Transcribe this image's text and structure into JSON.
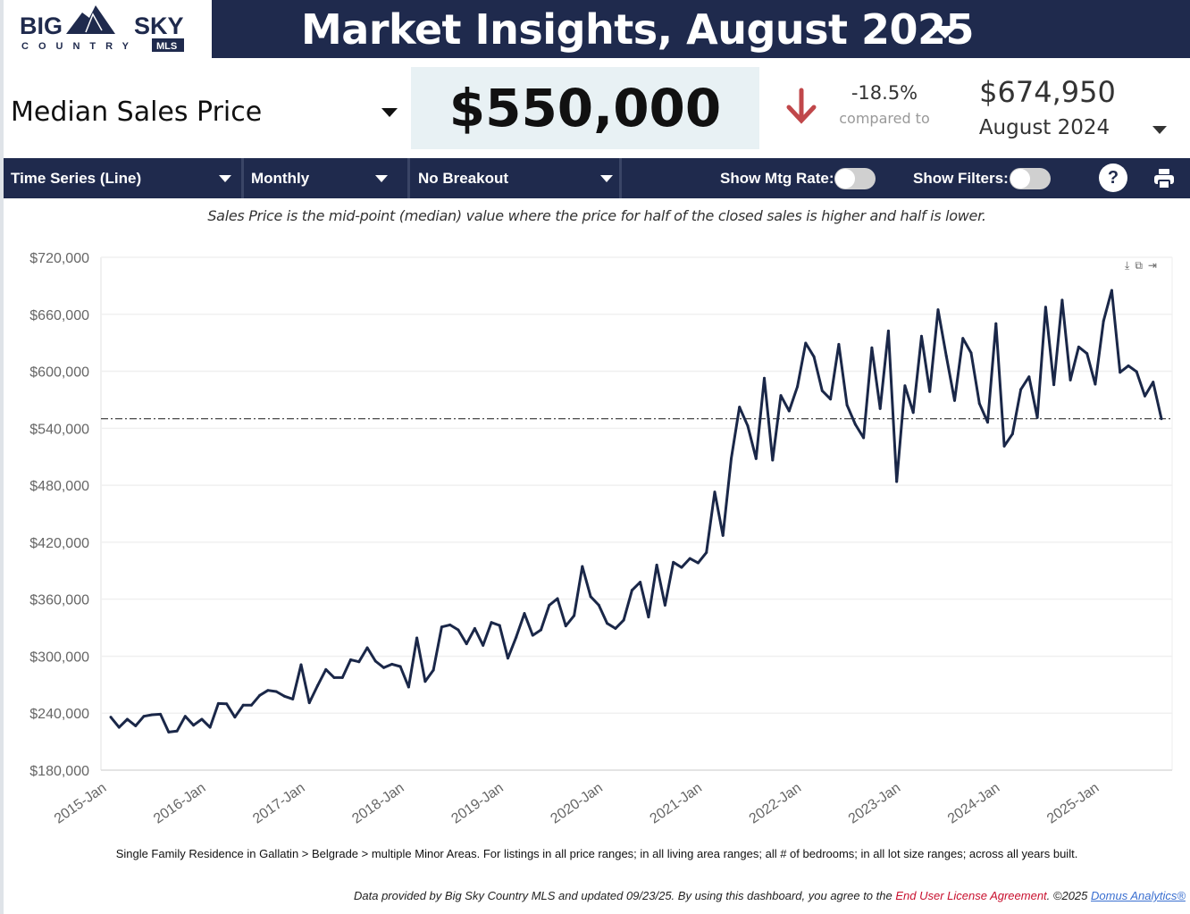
{
  "logo": {
    "text_top": "BIG SKY",
    "text_bottom": "COUNTRY",
    "badge": "MLS"
  },
  "header": {
    "title": "Market Insights, August 2025"
  },
  "metric": {
    "label": "Median Sales Price",
    "value": "$550,000",
    "change": "-18.5%",
    "compared_label": "compared to",
    "prior_value": "$674,950",
    "prior_period": "August 2024"
  },
  "toolbar": {
    "chart_type": "Time Series (Line)",
    "interval": "Monthly",
    "breakout": "No Breakout",
    "mtg_rate_label": "Show Mtg Rate:",
    "mtg_rate_on": false,
    "filters_label": "Show Filters:",
    "filters_on": false,
    "help": "?"
  },
  "description": "Sales Price is the mid-point (median) value where the price for half of the closed sales is higher and half is lower.",
  "chart_tools": [
    "download-icon",
    "copy-icon",
    "export-icon"
  ],
  "chart_data": {
    "type": "line",
    "title": "",
    "xlabel": "",
    "ylabel": "",
    "ylim": [
      180000,
      720000
    ],
    "yticks": [
      "$180,000",
      "$240,000",
      "$300,000",
      "$360,000",
      "$420,000",
      "$480,000",
      "$540,000",
      "$600,000",
      "$660,000",
      "$720,000"
    ],
    "ytick_values": [
      180000,
      240000,
      300000,
      360000,
      420000,
      480000,
      540000,
      600000,
      660000,
      720000
    ],
    "xticks": [
      "2015-Jan",
      "2016-Jan",
      "2017-Jan",
      "2018-Jan",
      "2019-Jan",
      "2020-Jan",
      "2021-Jan",
      "2022-Jan",
      "2023-Jan",
      "2024-Jan",
      "2025-Jan"
    ],
    "start": "2015-Jan",
    "end": "2025-Aug",
    "reference_line": 550000,
    "grid": true,
    "series": [
      {
        "name": "Median Sales Price",
        "color": "#1a2748",
        "values": [
          235800,
          225100,
          233600,
          226700,
          236700,
          238300,
          238900,
          220100,
          221100,
          236700,
          227300,
          233600,
          225100,
          250200,
          249900,
          235800,
          248400,
          248400,
          258700,
          264000,
          262800,
          257800,
          254900,
          291000,
          250900,
          269000,
          286000,
          277500,
          277500,
          296300,
          294100,
          308900,
          294800,
          287900,
          291600,
          289100,
          267500,
          319200,
          273400,
          285400,
          330800,
          333000,
          327700,
          313000,
          329200,
          311400,
          335500,
          332400,
          297900,
          319900,
          345000,
          322000,
          327700,
          353700,
          360600,
          331800,
          342700,
          394500,
          362800,
          353700,
          334600,
          329200,
          338000,
          369400,
          377900,
          341200,
          396000,
          353700,
          398900,
          393500,
          402900,
          398200,
          409200,
          472900,
          427100,
          508000,
          562300,
          542500,
          508000,
          592700,
          506400,
          574500,
          558200,
          583900,
          629700,
          615300,
          579500,
          570700,
          628400,
          564400,
          544100,
          530000,
          624700,
          560700,
          642500,
          483900,
          584800,
          556600,
          636900,
          578600,
          664800,
          616200,
          569200,
          634700,
          619300,
          566000,
          546300,
          650100,
          521200,
          534000,
          580800,
          594200,
          551300,
          667600,
          585800,
          674950,
          590800,
          625600,
          618700,
          586400,
          652900,
          685200,
          598900,
          605800,
          599600,
          573900,
          588600,
          550000
        ]
      }
    ]
  },
  "footnote": "Single Family Residence in Gallatin > Belgrade > multiple Minor Areas. For listings in all price ranges; in all living area ranges; all # of bedrooms; in all lot size ranges; across all years built.",
  "footer": {
    "prefix": "Data provided by Big Sky Country MLS and updated 09/23/25.  By using this dashboard, you agree to the ",
    "eula": "End User License Agreement",
    "mid": ".  ©2025 ",
    "domus": "Domus Analytics®"
  }
}
